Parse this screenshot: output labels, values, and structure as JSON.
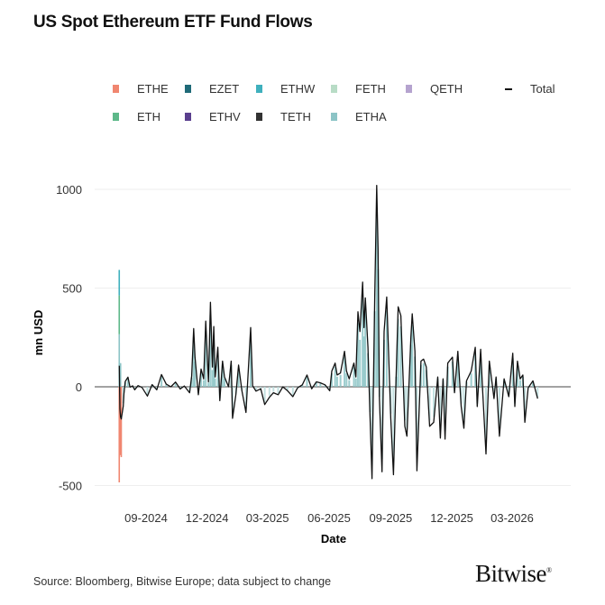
{
  "title": "US Spot Ethereum ETF Fund Flows",
  "source": "Source: Bloomberg, Bitwise Europe; data subject to change",
  "logo": "Bitwise",
  "legend": [
    {
      "name": "ETHE",
      "color": "#f08670"
    },
    {
      "name": "EZET",
      "color": "#1f6a78"
    },
    {
      "name": "ETHW",
      "color": "#3fb0bd"
    },
    {
      "name": "FETH",
      "color": "#b8dcc6"
    },
    {
      "name": "QETH",
      "color": "#b5a3cf"
    },
    {
      "name": "Total",
      "color": "#111111",
      "line": true
    },
    {
      "name": "ETH",
      "color": "#5db889"
    },
    {
      "name": "ETHV",
      "color": "#5a3f8e"
    },
    {
      "name": "TETH",
      "color": "#333333"
    },
    {
      "name": "ETHA",
      "color": "#8cc4c6"
    }
  ],
  "chart_data": {
    "type": "bar",
    "title": "US Spot Ethereum ETF Fund Flows",
    "xlabel": "Date",
    "ylabel": "mn USD",
    "ylim": [
      -560,
      1060
    ],
    "yticks": [
      -500,
      0,
      500,
      1000
    ],
    "xticks": [
      "09-2024",
      "12-2024",
      "03-2025",
      "06-2025",
      "09-2025",
      "12-2025",
      "03-2026"
    ],
    "xtick_dates": [
      "2024-09-01",
      "2024-12-01",
      "2025-03-01",
      "2025-06-01",
      "2025-09-01",
      "2025-12-01",
      "2026-03-01"
    ],
    "grid": true,
    "legend_position": "top",
    "components": [
      {
        "series": "ETHE",
        "date": "2024-07-23",
        "value": -484
      },
      {
        "series": "ETHE",
        "date": "2024-07-24",
        "value": -327
      },
      {
        "series": "ETHE",
        "date": "2024-07-25",
        "value": -346
      },
      {
        "series": "ETHE",
        "date": "2024-07-26",
        "value": -356
      },
      {
        "series": "ETHA",
        "date": "2024-07-23",
        "value": 266
      },
      {
        "series": "ETH",
        "date": "2024-07-23",
        "value": 197
      },
      {
        "series": "ETHW",
        "date": "2024-07-23",
        "value": 129
      },
      {
        "series": "ETH",
        "date": "2024-07-24",
        "value": 100
      },
      {
        "series": "ETHA",
        "date": "2024-07-25",
        "value": 120
      }
    ],
    "total": [
      [
        "2024-07-23",
        107
      ],
      [
        "2024-07-24",
        -113
      ],
      [
        "2024-07-25",
        -152
      ],
      [
        "2024-07-26",
        -163
      ],
      [
        "2024-07-29",
        -98
      ],
      [
        "2024-07-30",
        -34
      ],
      [
        "2024-08-01",
        27
      ],
      [
        "2024-08-05",
        49
      ],
      [
        "2024-08-08",
        -2
      ],
      [
        "2024-08-12",
        5
      ],
      [
        "2024-08-15",
        -15
      ],
      [
        "2024-08-20",
        6
      ],
      [
        "2024-08-26",
        -3
      ],
      [
        "2024-09-03",
        -47
      ],
      [
        "2024-09-10",
        11
      ],
      [
        "2024-09-17",
        -15
      ],
      [
        "2024-09-24",
        62
      ],
      [
        "2024-10-01",
        14
      ],
      [
        "2024-10-08",
        0
      ],
      [
        "2024-10-15",
        24
      ],
      [
        "2024-10-22",
        -11
      ],
      [
        "2024-10-28",
        4
      ],
      [
        "2024-11-05",
        -30
      ],
      [
        "2024-11-08",
        55
      ],
      [
        "2024-11-11",
        295
      ],
      [
        "2024-11-13",
        150
      ],
      [
        "2024-11-18",
        -40
      ],
      [
        "2024-11-22",
        90
      ],
      [
        "2024-11-26",
        40
      ],
      [
        "2024-11-29",
        333
      ],
      [
        "2024-12-03",
        25
      ],
      [
        "2024-12-06",
        428
      ],
      [
        "2024-12-09",
        100
      ],
      [
        "2024-12-11",
        305
      ],
      [
        "2024-12-13",
        50
      ],
      [
        "2024-12-17",
        200
      ],
      [
        "2024-12-20",
        -70
      ],
      [
        "2024-12-24",
        130
      ],
      [
        "2024-12-27",
        50
      ],
      [
        "2025-01-02",
        0
      ],
      [
        "2025-01-06",
        130
      ],
      [
        "2025-01-08",
        -160
      ],
      [
        "2025-01-13",
        -40
      ],
      [
        "2025-01-17",
        110
      ],
      [
        "2025-01-22",
        -20
      ],
      [
        "2025-01-28",
        -130
      ],
      [
        "2025-02-04",
        300
      ],
      [
        "2025-02-07",
        5
      ],
      [
        "2025-02-12",
        -22
      ],
      [
        "2025-02-19",
        -10
      ],
      [
        "2025-02-25",
        -90
      ],
      [
        "2025-03-04",
        -53
      ],
      [
        "2025-03-10",
        -30
      ],
      [
        "2025-03-17",
        -40
      ],
      [
        "2025-03-24",
        0
      ],
      [
        "2025-03-31",
        -20
      ],
      [
        "2025-04-08",
        -50
      ],
      [
        "2025-04-15",
        -5
      ],
      [
        "2025-04-22",
        10
      ],
      [
        "2025-04-29",
        60
      ],
      [
        "2025-05-06",
        -10
      ],
      [
        "2025-05-13",
        25
      ],
      [
        "2025-05-19",
        20
      ],
      [
        "2025-05-26",
        10
      ],
      [
        "2025-06-02",
        -20
      ],
      [
        "2025-06-05",
        80
      ],
      [
        "2025-06-10",
        120
      ],
      [
        "2025-06-13",
        60
      ],
      [
        "2025-06-18",
        70
      ],
      [
        "2025-06-24",
        180
      ],
      [
        "2025-06-27",
        80
      ],
      [
        "2025-07-01",
        40
      ],
      [
        "2025-07-08",
        120
      ],
      [
        "2025-07-11",
        50
      ],
      [
        "2025-07-14",
        380
      ],
      [
        "2025-07-17",
        280
      ],
      [
        "2025-07-21",
        530
      ],
      [
        "2025-07-23",
        300
      ],
      [
        "2025-07-25",
        450
      ],
      [
        "2025-07-29",
        200
      ],
      [
        "2025-08-01",
        -150
      ],
      [
        "2025-08-04",
        -465
      ],
      [
        "2025-08-08",
        450
      ],
      [
        "2025-08-11",
        1020
      ],
      [
        "2025-08-13",
        700
      ],
      [
        "2025-08-15",
        -60
      ],
      [
        "2025-08-19",
        -430
      ],
      [
        "2025-08-22",
        280
      ],
      [
        "2025-08-26",
        455
      ],
      [
        "2025-09-01",
        -160
      ],
      [
        "2025-09-05",
        -445
      ],
      [
        "2025-09-09",
        60
      ],
      [
        "2025-09-12",
        405
      ],
      [
        "2025-09-16",
        360
      ],
      [
        "2025-09-22",
        -200
      ],
      [
        "2025-09-25",
        -250
      ],
      [
        "2025-10-01",
        250
      ],
      [
        "2025-10-03",
        370
      ],
      [
        "2025-10-07",
        180
      ],
      [
        "2025-10-10",
        -425
      ],
      [
        "2025-10-16",
        130
      ],
      [
        "2025-10-20",
        140
      ],
      [
        "2025-10-24",
        100
      ],
      [
        "2025-10-29",
        -200
      ],
      [
        "2025-11-04",
        -180
      ],
      [
        "2025-11-10",
        50
      ],
      [
        "2025-11-14",
        -260
      ],
      [
        "2025-11-18",
        40
      ],
      [
        "2025-11-21",
        -265
      ],
      [
        "2025-11-25",
        120
      ],
      [
        "2025-12-02",
        150
      ],
      [
        "2025-12-05",
        -30
      ],
      [
        "2025-12-10",
        180
      ],
      [
        "2025-12-15",
        -100
      ],
      [
        "2025-12-19",
        -210
      ],
      [
        "2025-12-23",
        30
      ],
      [
        "2025-12-30",
        80
      ],
      [
        "2026-01-05",
        200
      ],
      [
        "2026-01-08",
        -100
      ],
      [
        "2026-01-13",
        190
      ],
      [
        "2026-01-16",
        -20
      ],
      [
        "2026-01-21",
        -340
      ],
      [
        "2026-01-26",
        130
      ],
      [
        "2026-02-02",
        -60
      ],
      [
        "2026-02-05",
        50
      ],
      [
        "2026-02-10",
        -250
      ],
      [
        "2026-02-17",
        40
      ],
      [
        "2026-02-24",
        -50
      ],
      [
        "2026-03-02",
        170
      ],
      [
        "2026-03-05",
        -100
      ],
      [
        "2026-03-09",
        130
      ],
      [
        "2026-03-13",
        40
      ],
      [
        "2026-03-17",
        60
      ],
      [
        "2026-03-20",
        -180
      ],
      [
        "2026-03-25",
        -5
      ],
      [
        "2026-04-01",
        30
      ],
      [
        "2026-04-08",
        -60
      ]
    ]
  }
}
